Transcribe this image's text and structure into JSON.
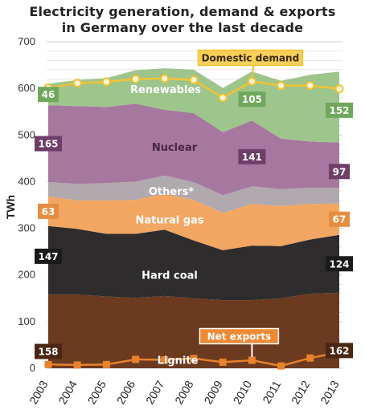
{
  "title": {
    "line1": "Electricity generation, demand & exports",
    "line2": "in Germany over the last decade"
  },
  "colors": {
    "lignite": "#6b3a1f",
    "hard_coal": "#2e2c2d",
    "natural_gas": "#f2a662",
    "others": "#b0a9ad",
    "nuclear": "#a7789f",
    "renewables": "#9dc58c",
    "demand_line": "#f2c232",
    "exports_line": "#e8822d",
    "grid": "#cccccc"
  },
  "chart_data": {
    "type": "area",
    "title": "Electricity generation, demand & exports in Germany over the last decade",
    "ylabel": "TWh",
    "xlabel": "",
    "ylim": [
      0,
      700
    ],
    "yticks": [
      0,
      100,
      200,
      300,
      400,
      500,
      600,
      700
    ],
    "grid": true,
    "categories": [
      "2003",
      "2004",
      "2005",
      "2006",
      "2007",
      "2008",
      "2009",
      "2010",
      "2011",
      "2012",
      "2013"
    ],
    "series": [
      {
        "name": "Lignite",
        "key": "lignite",
        "values": [
          158,
          158,
          154,
          151,
          155,
          150,
          146,
          146,
          150,
          160,
          162
        ]
      },
      {
        "name": "Hard coal",
        "key": "hard_coal",
        "values": [
          147,
          141,
          134,
          137,
          142,
          124,
          107,
          117,
          112,
          116,
          124
        ]
      },
      {
        "name": "Natural gas",
        "key": "natural_gas",
        "values": [
          63,
          61,
          72,
          73,
          77,
          87,
          80,
          89,
          86,
          76,
          67
        ]
      },
      {
        "name": "Others*",
        "key": "others",
        "values": [
          31,
          35,
          37,
          39,
          39,
          38,
          38,
          38,
          36,
          35,
          34
        ]
      },
      {
        "name": "Nuclear",
        "key": "nuclear",
        "values": [
          165,
          167,
          163,
          167,
          141,
          148,
          135,
          141,
          108,
          99,
          97
        ]
      },
      {
        "name": "Renewables",
        "key": "renewables",
        "values": [
          46,
          56,
          62,
          72,
          89,
          93,
          95,
          105,
          124,
          143,
          152
        ]
      }
    ],
    "lines": [
      {
        "name": "Domestic demand",
        "key": "demand_line",
        "values": [
          601,
          611,
          614,
          620,
          621,
          618,
          580,
          615,
          606,
          606,
          599
        ]
      },
      {
        "name": "Net exports",
        "key": "exports_line",
        "values": [
          8,
          7,
          8,
          19,
          18,
          21,
          13,
          17,
          5,
          22,
          34
        ]
      }
    ],
    "labels": {
      "lignite_start": "158",
      "lignite_end": "162",
      "hardcoal_start": "147",
      "hardcoal_end": "124",
      "gas_start": "63",
      "gas_end": "67",
      "nuclear_start": "165",
      "nuclear_mid": "141",
      "nuclear_end": "97",
      "renew_start": "46",
      "renew_mid": "105",
      "renew_end": "152"
    }
  }
}
